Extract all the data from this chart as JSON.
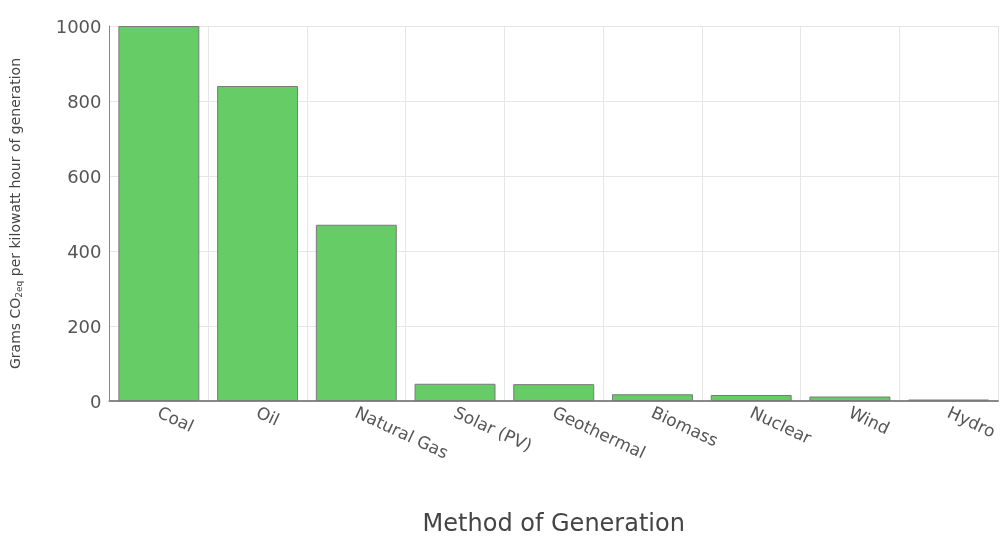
{
  "chart_data": {
    "type": "bar",
    "xlabel": "Method of Generation",
    "ylabel": "Grams CO$_{2eq}$ per kilowatt hour of generation",
    "categories": [
      "Coal",
      "Oil",
      "Natural Gas",
      "Solar (PV)",
      "Geothermal",
      "Biomass",
      "Nuclear",
      "Wind",
      "Hydro"
    ],
    "values": [
      1000,
      840,
      470,
      46,
      45,
      18,
      16,
      12,
      4
    ],
    "color": "#66cc66",
    "ylim": [
      0,
      1000
    ],
    "yticks": [
      0,
      200,
      400,
      600,
      800,
      1000
    ],
    "grid": true
  }
}
